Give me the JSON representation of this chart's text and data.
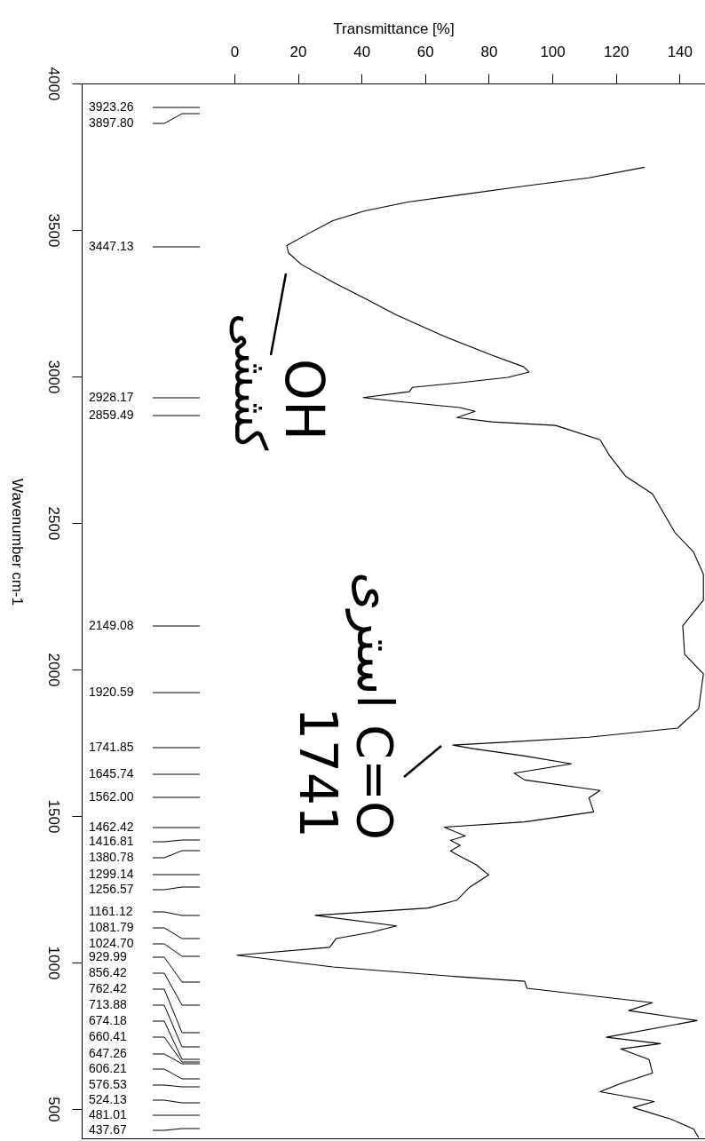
{
  "chart_data": {
    "type": "line",
    "orientation": "horizontal",
    "xlabel": "Transmittance [%]",
    "ylabel": "Wavenumber cm-1",
    "xlim": [
      -48,
      148
    ],
    "xticks": [
      0,
      20,
      40,
      60,
      80,
      100,
      120,
      140
    ],
    "ylim": [
      400,
      4000
    ],
    "yticks": [
      4000,
      3500,
      3000,
      2500,
      2000,
      1500,
      1000,
      500
    ],
    "series": [
      {
        "color": "#000000",
        "x": [
          3714,
          3678,
          3650,
          3620,
          3596,
          3565,
          3532,
          3486,
          3447,
          3422,
          3383,
          3322,
          3267,
          3210,
          3137,
          3073,
          3033,
          3015,
          2997,
          2979,
          2963,
          2948,
          2928,
          2915,
          2894,
          2881,
          2860,
          2845,
          2833,
          2784,
          2730,
          2660,
          2599,
          2468,
          2401,
          2325,
          2237,
          2195,
          2149,
          2052,
          1985,
          1866,
          1800,
          1769,
          1752,
          1742,
          1730,
          1705,
          1678,
          1646,
          1623,
          1587,
          1562,
          1514,
          1480,
          1462,
          1432,
          1417,
          1400,
          1381,
          1368,
          1334,
          1299,
          1257,
          1213,
          1186,
          1161,
          1125,
          1103,
          1082,
          1052,
          1025,
          985,
          951,
          936,
          912,
          863,
          836,
          802,
          745,
          723,
          705,
          669,
          623,
          587,
          559,
          526,
          505,
          465,
          432,
          402
        ],
        "values": [
          129,
          111.5,
          91.3,
          71.2,
          55,
          41,
          31,
          23,
          16.5,
          17,
          21,
          31,
          41,
          51,
          66,
          81,
          91,
          92.7,
          86,
          71,
          56,
          55,
          40.5,
          51,
          71,
          75.7,
          70,
          81,
          101,
          115,
          118,
          123,
          131.5,
          138.5,
          144.4,
          147.5,
          147.5,
          144.4,
          141,
          141.6,
          147.5,
          146,
          139.4,
          111.5,
          85,
          68.7,
          75,
          91.3,
          106,
          88,
          91.3,
          115,
          111.5,
          113,
          91.3,
          66,
          72.6,
          68,
          71,
          68,
          70,
          76,
          80,
          74,
          70,
          61,
          25.4,
          51,
          43,
          32,
          30,
          0.8,
          31,
          71,
          91.3,
          92,
          131.5,
          124,
          145.5,
          117,
          134,
          121.5,
          130.4,
          131.5,
          121.5,
          115,
          132,
          125.4,
          137.4,
          144.4,
          146
        ]
      }
    ],
    "annotations": [
      "OH",
      "کششی",
      "استری C=O",
      "1741",
      "3923.26",
      "3897.80",
      "3447.13",
      "2928.17",
      "2859.49",
      "2149.08",
      "1920.59",
      "1741.85",
      "1645.74",
      "1562.00",
      "1462.42",
      "1416.81",
      "1380.78",
      "1299.14",
      "1256.57",
      "1161.12",
      "1081.79",
      "1024.70",
      "929.99",
      "856.42",
      "762.42",
      "713.88",
      "674.18",
      "660.41",
      "647.26",
      "606.21",
      "576.53",
      "524.13",
      "481.01",
      "437.67"
    ]
  }
}
